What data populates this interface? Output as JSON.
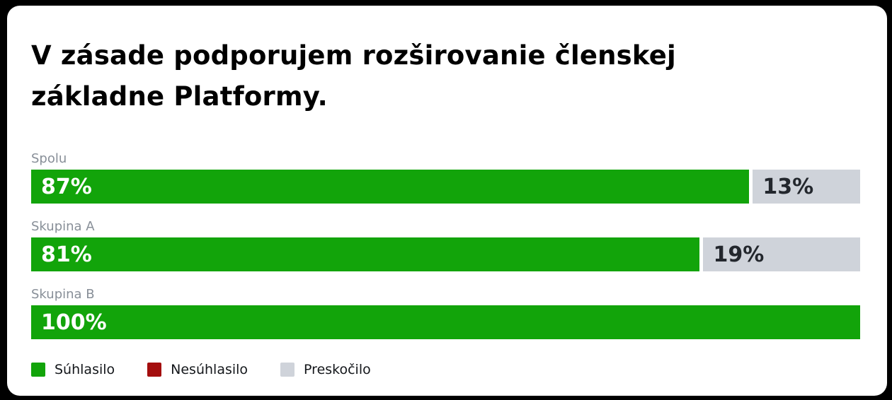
{
  "title": "V zásade podporujem rozširovanie členskej základne Platformy.",
  "chart_data": {
    "type": "bar",
    "orientation": "horizontal",
    "stacked": true,
    "title": "V zásade podporujem rozširovanie členskej základne Platformy.",
    "categories": [
      "Spolu",
      "Skupina A",
      "Skupina B"
    ],
    "series": [
      {
        "name": "Súhlasilo",
        "color": "#12A40A",
        "text_color": "#ffffff",
        "values": [
          87,
          81,
          100
        ]
      },
      {
        "name": "Nesúhlasilo",
        "color": "#A40E0E",
        "text_color": "#ffffff",
        "values": [
          0,
          0,
          0
        ]
      },
      {
        "name": "Preskočilo",
        "color": "#CFD3DA",
        "text_color": "#23272D",
        "values": [
          13,
          19,
          0
        ]
      }
    ],
    "value_format": "percent",
    "xlim": [
      0,
      100
    ],
    "grid": false,
    "legend_position": "bottom",
    "bar_labels": [
      "87%",
      "13%",
      "81%",
      "19%",
      "100%"
    ]
  },
  "legend": {
    "items": [
      {
        "label": "Súhlasilo",
        "color": "#12A40A"
      },
      {
        "label": "Nesúhlasilo",
        "color": "#A40E0E"
      },
      {
        "label": "Preskočilo",
        "color": "#CFD3DA"
      }
    ]
  }
}
